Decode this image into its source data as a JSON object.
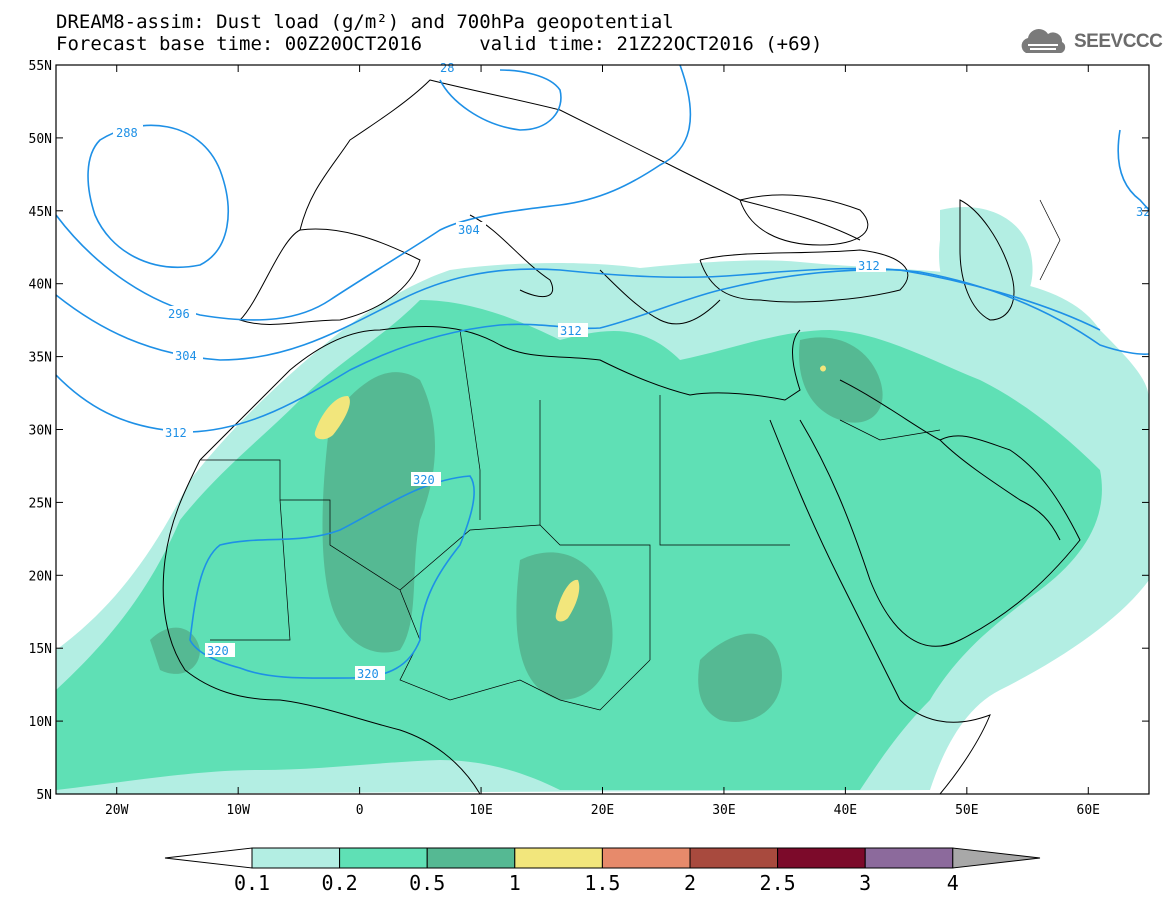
{
  "header": {
    "title_line1": "DREAM8-assim: Dust load (g/m²) and 700hPa geopotential",
    "title_line2": "Forecast base time: 00Z20OCT2016     valid time: 21Z22OCT2016 (+69)",
    "logo_text": "SEEVCCC"
  },
  "map": {
    "lon_range": [
      -25,
      65
    ],
    "lat_range": [
      5,
      55
    ],
    "lon_ticks": [
      "20W",
      "10W",
      "0",
      "10E",
      "20E",
      "30E",
      "40E",
      "50E",
      "60E"
    ],
    "lat_ticks": [
      "55N",
      "50N",
      "45N",
      "40N",
      "35N",
      "30N",
      "25N",
      "20N",
      "15N",
      "10N",
      "5N"
    ],
    "contour_labels": [
      "288",
      "296",
      "304",
      "312",
      "320",
      "304",
      "312",
      "312",
      "320",
      "320",
      "28",
      "32"
    ],
    "contour_color": "#1e90e6"
  },
  "colorbar": {
    "labels": [
      "0.1",
      "0.2",
      "0.5",
      "1",
      "1.5",
      "2",
      "2.5",
      "3",
      "4"
    ],
    "colors": [
      "#b3eee3",
      "#5fe0b5",
      "#55b993",
      "#f2e67c",
      "#e78a6b",
      "#a84a3e",
      "#7c0a2a",
      "#8c6a9c"
    ],
    "end_color": "#a8a8a8"
  },
  "colors": {
    "dust_01": "#b3eee3",
    "dust_02": "#5fe0b5",
    "dust_05": "#55b993",
    "dust_1": "#f2e67c",
    "coastline": "#000000"
  }
}
